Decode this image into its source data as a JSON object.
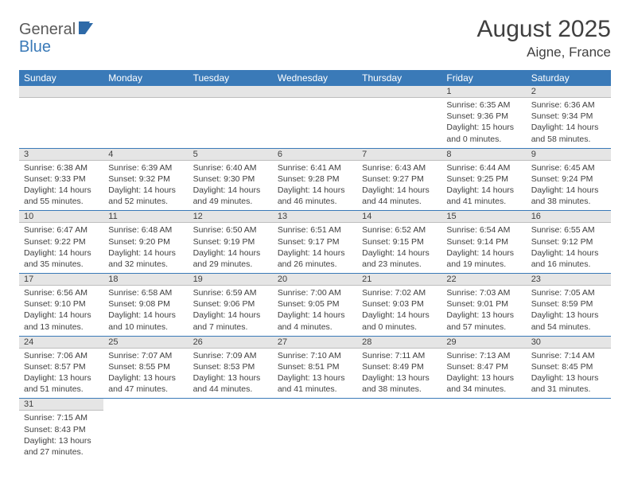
{
  "brand": {
    "part1": "General",
    "part2": "Blue"
  },
  "title": "August 2025",
  "location": "Aigne, France",
  "colors": {
    "header_bg": "#3a7ab8",
    "header_text": "#ffffff",
    "daynum_bg": "#e5e5e5",
    "row_divider": "#3a7ab8",
    "text": "#404040"
  },
  "weekdays": [
    "Sunday",
    "Monday",
    "Tuesday",
    "Wednesday",
    "Thursday",
    "Friday",
    "Saturday"
  ],
  "weeks": [
    [
      null,
      null,
      null,
      null,
      null,
      {
        "d": "1",
        "sr": "Sunrise: 6:35 AM",
        "ss": "Sunset: 9:36 PM",
        "dl1": "Daylight: 15 hours",
        "dl2": "and 0 minutes."
      },
      {
        "d": "2",
        "sr": "Sunrise: 6:36 AM",
        "ss": "Sunset: 9:34 PM",
        "dl1": "Daylight: 14 hours",
        "dl2": "and 58 minutes."
      }
    ],
    [
      {
        "d": "3",
        "sr": "Sunrise: 6:38 AM",
        "ss": "Sunset: 9:33 PM",
        "dl1": "Daylight: 14 hours",
        "dl2": "and 55 minutes."
      },
      {
        "d": "4",
        "sr": "Sunrise: 6:39 AM",
        "ss": "Sunset: 9:32 PM",
        "dl1": "Daylight: 14 hours",
        "dl2": "and 52 minutes."
      },
      {
        "d": "5",
        "sr": "Sunrise: 6:40 AM",
        "ss": "Sunset: 9:30 PM",
        "dl1": "Daylight: 14 hours",
        "dl2": "and 49 minutes."
      },
      {
        "d": "6",
        "sr": "Sunrise: 6:41 AM",
        "ss": "Sunset: 9:28 PM",
        "dl1": "Daylight: 14 hours",
        "dl2": "and 46 minutes."
      },
      {
        "d": "7",
        "sr": "Sunrise: 6:43 AM",
        "ss": "Sunset: 9:27 PM",
        "dl1": "Daylight: 14 hours",
        "dl2": "and 44 minutes."
      },
      {
        "d": "8",
        "sr": "Sunrise: 6:44 AM",
        "ss": "Sunset: 9:25 PM",
        "dl1": "Daylight: 14 hours",
        "dl2": "and 41 minutes."
      },
      {
        "d": "9",
        "sr": "Sunrise: 6:45 AM",
        "ss": "Sunset: 9:24 PM",
        "dl1": "Daylight: 14 hours",
        "dl2": "and 38 minutes."
      }
    ],
    [
      {
        "d": "10",
        "sr": "Sunrise: 6:47 AM",
        "ss": "Sunset: 9:22 PM",
        "dl1": "Daylight: 14 hours",
        "dl2": "and 35 minutes."
      },
      {
        "d": "11",
        "sr": "Sunrise: 6:48 AM",
        "ss": "Sunset: 9:20 PM",
        "dl1": "Daylight: 14 hours",
        "dl2": "and 32 minutes."
      },
      {
        "d": "12",
        "sr": "Sunrise: 6:50 AM",
        "ss": "Sunset: 9:19 PM",
        "dl1": "Daylight: 14 hours",
        "dl2": "and 29 minutes."
      },
      {
        "d": "13",
        "sr": "Sunrise: 6:51 AM",
        "ss": "Sunset: 9:17 PM",
        "dl1": "Daylight: 14 hours",
        "dl2": "and 26 minutes."
      },
      {
        "d": "14",
        "sr": "Sunrise: 6:52 AM",
        "ss": "Sunset: 9:15 PM",
        "dl1": "Daylight: 14 hours",
        "dl2": "and 23 minutes."
      },
      {
        "d": "15",
        "sr": "Sunrise: 6:54 AM",
        "ss": "Sunset: 9:14 PM",
        "dl1": "Daylight: 14 hours",
        "dl2": "and 19 minutes."
      },
      {
        "d": "16",
        "sr": "Sunrise: 6:55 AM",
        "ss": "Sunset: 9:12 PM",
        "dl1": "Daylight: 14 hours",
        "dl2": "and 16 minutes."
      }
    ],
    [
      {
        "d": "17",
        "sr": "Sunrise: 6:56 AM",
        "ss": "Sunset: 9:10 PM",
        "dl1": "Daylight: 14 hours",
        "dl2": "and 13 minutes."
      },
      {
        "d": "18",
        "sr": "Sunrise: 6:58 AM",
        "ss": "Sunset: 9:08 PM",
        "dl1": "Daylight: 14 hours",
        "dl2": "and 10 minutes."
      },
      {
        "d": "19",
        "sr": "Sunrise: 6:59 AM",
        "ss": "Sunset: 9:06 PM",
        "dl1": "Daylight: 14 hours",
        "dl2": "and 7 minutes."
      },
      {
        "d": "20",
        "sr": "Sunrise: 7:00 AM",
        "ss": "Sunset: 9:05 PM",
        "dl1": "Daylight: 14 hours",
        "dl2": "and 4 minutes."
      },
      {
        "d": "21",
        "sr": "Sunrise: 7:02 AM",
        "ss": "Sunset: 9:03 PM",
        "dl1": "Daylight: 14 hours",
        "dl2": "and 0 minutes."
      },
      {
        "d": "22",
        "sr": "Sunrise: 7:03 AM",
        "ss": "Sunset: 9:01 PM",
        "dl1": "Daylight: 13 hours",
        "dl2": "and 57 minutes."
      },
      {
        "d": "23",
        "sr": "Sunrise: 7:05 AM",
        "ss": "Sunset: 8:59 PM",
        "dl1": "Daylight: 13 hours",
        "dl2": "and 54 minutes."
      }
    ],
    [
      {
        "d": "24",
        "sr": "Sunrise: 7:06 AM",
        "ss": "Sunset: 8:57 PM",
        "dl1": "Daylight: 13 hours",
        "dl2": "and 51 minutes."
      },
      {
        "d": "25",
        "sr": "Sunrise: 7:07 AM",
        "ss": "Sunset: 8:55 PM",
        "dl1": "Daylight: 13 hours",
        "dl2": "and 47 minutes."
      },
      {
        "d": "26",
        "sr": "Sunrise: 7:09 AM",
        "ss": "Sunset: 8:53 PM",
        "dl1": "Daylight: 13 hours",
        "dl2": "and 44 minutes."
      },
      {
        "d": "27",
        "sr": "Sunrise: 7:10 AM",
        "ss": "Sunset: 8:51 PM",
        "dl1": "Daylight: 13 hours",
        "dl2": "and 41 minutes."
      },
      {
        "d": "28",
        "sr": "Sunrise: 7:11 AM",
        "ss": "Sunset: 8:49 PM",
        "dl1": "Daylight: 13 hours",
        "dl2": "and 38 minutes."
      },
      {
        "d": "29",
        "sr": "Sunrise: 7:13 AM",
        "ss": "Sunset: 8:47 PM",
        "dl1": "Daylight: 13 hours",
        "dl2": "and 34 minutes."
      },
      {
        "d": "30",
        "sr": "Sunrise: 7:14 AM",
        "ss": "Sunset: 8:45 PM",
        "dl1": "Daylight: 13 hours",
        "dl2": "and 31 minutes."
      }
    ],
    [
      {
        "d": "31",
        "sr": "Sunrise: 7:15 AM",
        "ss": "Sunset: 8:43 PM",
        "dl1": "Daylight: 13 hours",
        "dl2": "and 27 minutes."
      },
      null,
      null,
      null,
      null,
      null,
      null
    ]
  ]
}
